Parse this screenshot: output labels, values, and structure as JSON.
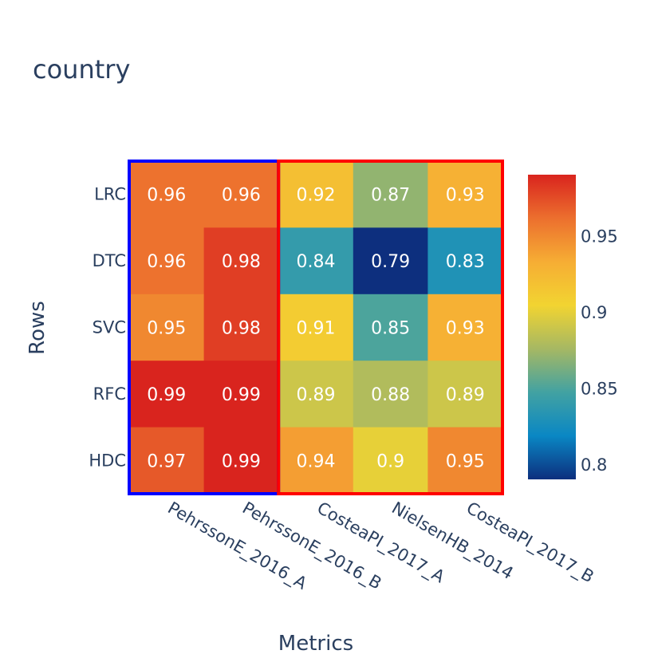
{
  "title": "country",
  "chart_data": {
    "type": "heatmap",
    "title": "country",
    "xlabel": "Metrics",
    "ylabel": "Rows",
    "x_categories": [
      "PehrssonE_2016_A",
      "PehrssonE_2016_B",
      "CosteaPI_2017_A",
      "NielsenHB_2014",
      "CosteaPI_2017_B"
    ],
    "y_categories": [
      "LRC",
      "DTC",
      "SVC",
      "RFC",
      "HDC"
    ],
    "values": [
      [
        0.96,
        0.96,
        0.92,
        0.87,
        0.93
      ],
      [
        0.96,
        0.98,
        0.84,
        0.79,
        0.83
      ],
      [
        0.95,
        0.98,
        0.91,
        0.85,
        0.93
      ],
      [
        0.99,
        0.99,
        0.89,
        0.88,
        0.89
      ],
      [
        0.97,
        0.99,
        0.94,
        0.9,
        0.95
      ]
    ],
    "value_labels": [
      [
        "0.96",
        "0.96",
        "0.92",
        "0.87",
        "0.93"
      ],
      [
        "0.96",
        "0.98",
        "0.84",
        "0.79",
        "0.83"
      ],
      [
        "0.95",
        "0.98",
        "0.91",
        "0.85",
        "0.93"
      ],
      [
        "0.99",
        "0.99",
        "0.89",
        "0.88",
        "0.89"
      ],
      [
        "0.97",
        "0.99",
        "0.94",
        "0.9",
        "0.95"
      ]
    ],
    "colorscale": {
      "range": [
        0.79,
        0.99
      ],
      "stops": [
        "#0d2f7e",
        "#0a87c4",
        "#42a2a2",
        "#a6b863",
        "#f2d431",
        "#f6ad34",
        "#ec6f2e",
        "#d9241e"
      ],
      "ticks": [
        "0.8",
        "0.85",
        "0.9",
        "0.95"
      ]
    },
    "highlight_boxes": [
      {
        "columns": [
          0,
          1
        ],
        "color": "#0000ff"
      },
      {
        "columns": [
          2,
          4
        ],
        "color": "#ff0000"
      }
    ]
  }
}
